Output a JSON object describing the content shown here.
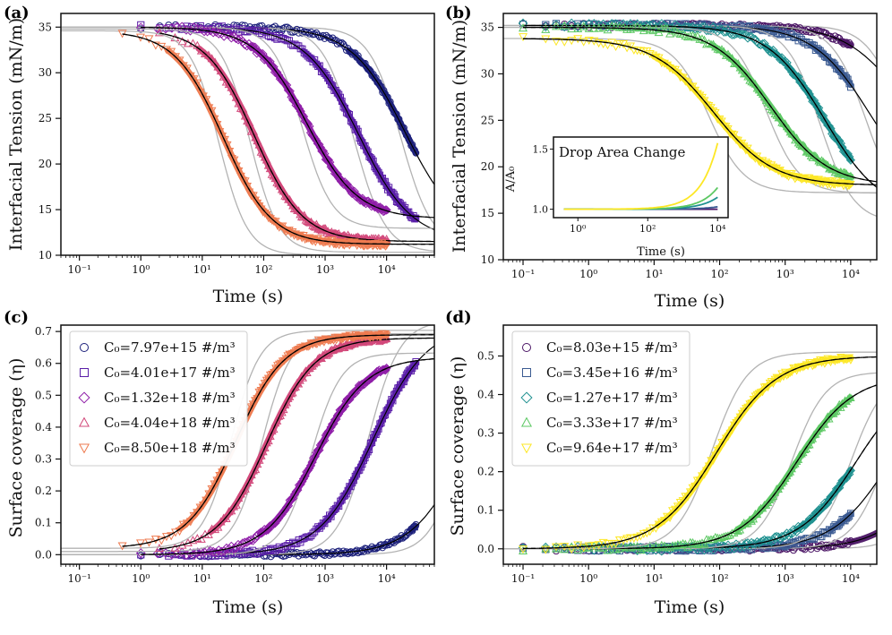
{
  "figure": {
    "panels": [
      {
        "tag": "(a)",
        "ylabel": "Interfacial Tension (mN/m)",
        "xlabel": "Time (s)"
      },
      {
        "tag": "(b)",
        "ylabel": "Interfacial Tension (mN/m)",
        "xlabel": "Time (s)"
      },
      {
        "tag": "(c)",
        "ylabel": "Surface coverage (η)",
        "xlabel": "Time (s)"
      },
      {
        "tag": "(d)",
        "ylabel": "Surface coverage (η)",
        "xlabel": "Time (s)"
      }
    ],
    "inset": {
      "title": "Drop Area Change",
      "ylabel": "A/A₀",
      "xlabel": "Time (s)"
    }
  },
  "chart_data": [
    {
      "panel": "(a)",
      "type": "scatter",
      "title": "",
      "xlabel": "Time (s)",
      "ylabel": "Interfacial Tension (mN/m)",
      "xscale": "log",
      "xlim": [
        0.05,
        60000
      ],
      "ylim": [
        10,
        36.5
      ],
      "xticks": [
        "10⁻¹",
        "10⁰",
        "10¹",
        "10²",
        "10³",
        "10⁴"
      ],
      "xtick_values": [
        0.1,
        1,
        10,
        100,
        1000,
        10000
      ],
      "yticks": [
        10,
        15,
        20,
        25,
        30,
        35
      ],
      "series": [
        {
          "name": "C0=7.97e+15 #/m3",
          "color": "#1b1f7a",
          "marker": "circle",
          "start": 35,
          "end": 12,
          "t50": 20000,
          "slope": 1.0,
          "tmin": 1,
          "tmax": 30000,
          "fitEnd": 12,
          "fitT50": 12000
        },
        {
          "name": "C0=4.01e+17 #/m3",
          "color": "#5a1ea8",
          "marker": "square",
          "start": 35,
          "end": 11.5,
          "t50": 3500,
          "slope": 1.0,
          "tmin": 1,
          "tmax": 30000,
          "fitEnd": 11.5,
          "fitT50": 3500
        },
        {
          "name": "C0=1.32e+18 #/m3",
          "color": "#8f1ea8",
          "marker": "diamond",
          "start": 35,
          "end": 14,
          "t50": 500,
          "slope": 1.05,
          "tmin": 1,
          "tmax": 10000,
          "fitEnd": 12,
          "fitT50": 600
        },
        {
          "name": "C0=4.04e+18 #/m3",
          "color": "#d2487a",
          "marker": "triangle-up",
          "start": 34.8,
          "end": 11.5,
          "t50": 70,
          "slope": 1.1,
          "tmin": 2,
          "tmax": 10000,
          "fitEnd": 11.5,
          "fitT50": 70
        },
        {
          "name": "C0=8.50e+18 #/m3",
          "color": "#ee7b50",
          "marker": "triangle-down",
          "start": 34.6,
          "end": 11.2,
          "t50": 22,
          "slope": 1.1,
          "tmin": 0.5,
          "tmax": 10000,
          "fitEnd": 11.2,
          "fitT50": 22
        }
      ]
    },
    {
      "panel": "(b)",
      "type": "scatter",
      "title": "",
      "xlabel": "Time (s)",
      "ylabel": "Interfacial Tension (mN/m)",
      "xscale": "log",
      "xlim": [
        0.05,
        25000
      ],
      "ylim": [
        10,
        36.5
      ],
      "xticks": [
        "10⁻¹",
        "10⁰",
        "10¹",
        "10²",
        "10³",
        "10⁴"
      ],
      "xtick_values": [
        0.1,
        1,
        10,
        100,
        1000,
        10000
      ],
      "yticks": [
        10,
        15,
        20,
        25,
        30,
        35
      ],
      "series": [
        {
          "name": "C0=8.03e+15 #/m3",
          "color": "#4b1565",
          "marker": "circle",
          "start": 35.2,
          "end": 20,
          "t50": 60000,
          "slope": 1.0,
          "tmin": 0.1,
          "tmax": 10000,
          "fitEnd": 20,
          "fitT50": 60000
        },
        {
          "name": "C0=3.45e+16 #/m3",
          "color": "#3b5b92",
          "marker": "square",
          "start": 35.2,
          "end": 16,
          "t50": 20000,
          "slope": 1.0,
          "tmin": 0.1,
          "tmax": 10000,
          "fitEnd": 16,
          "fitT50": 20000
        },
        {
          "name": "C0=1.27e+17 #/m3",
          "color": "#1f9190",
          "marker": "diamond",
          "start": 35.2,
          "end": 15,
          "t50": 4000,
          "slope": 1.0,
          "tmin": 0.1,
          "tmax": 10000,
          "fitEnd": 15,
          "fitT50": 4000
        },
        {
          "name": "C0=3.33e+17 #/m3",
          "color": "#5cc863",
          "marker": "triangle-up",
          "start": 35,
          "end": 18,
          "t50": 600,
          "slope": 1.0,
          "tmin": 0.1,
          "tmax": 10000,
          "fitEnd": 18,
          "fitT50": 600
        },
        {
          "name": "C0=9.64e+17 #/m3",
          "color": "#fde725",
          "marker": "triangle-down",
          "start": 33.8,
          "end": 18,
          "t50": 80,
          "slope": 0.95,
          "tmin": 0.1,
          "tmax": 10000,
          "fitEnd": 18,
          "fitT50": 80
        }
      ]
    },
    {
      "panel": "(c)",
      "type": "scatter",
      "title": "",
      "xlabel": "Time (s)",
      "ylabel": "Surface coverage (η)",
      "xscale": "log",
      "xlim": [
        0.05,
        60000
      ],
      "ylim": [
        -0.03,
        0.72
      ],
      "xticks": [
        "10⁻¹",
        "10⁰",
        "10¹",
        "10²",
        "10³",
        "10⁴"
      ],
      "xtick_values": [
        0.1,
        1,
        10,
        100,
        1000,
        10000
      ],
      "yticks": [
        0.0,
        0.1,
        0.2,
        0.3,
        0.4,
        0.5,
        0.6,
        0.7
      ],
      "legend": "upper-left",
      "series": [
        {
          "name": "C0=7.97e+15 #/m3",
          "label": "C₀=7.97e+15 #/m³",
          "color": "#1b1f7a",
          "marker": "circle",
          "start": 0.0,
          "end": 0.68,
          "t50": 200000,
          "slope": 1.0,
          "tmin": 1,
          "tmax": 30000
        },
        {
          "name": "C0=4.01e+17 #/m3",
          "label": "C₀=4.01e+17 #/m³",
          "color": "#5a1ea8",
          "marker": "square",
          "start": 0.0,
          "end": 0.72,
          "t50": 6000,
          "slope": 1.0,
          "tmin": 1,
          "tmax": 30000
        },
        {
          "name": "C0=1.32e+18 #/m3",
          "label": "C₀=1.32e+18 #/m³",
          "color": "#8f1ea8",
          "marker": "diamond",
          "start": 0.0,
          "end": 0.62,
          "t50": 700,
          "slope": 1.05,
          "tmin": 1,
          "tmax": 10000
        },
        {
          "name": "C0=4.04e+18 #/m3",
          "label": "C₀=4.04e+18 #/m³",
          "color": "#d2487a",
          "marker": "triangle-up",
          "start": 0.01,
          "end": 0.68,
          "t50": 110,
          "slope": 1.1,
          "tmin": 2,
          "tmax": 10000
        },
        {
          "name": "C0=8.50e+18 #/m3",
          "label": "C₀=8.50e+18 #/m³",
          "color": "#ee7b50",
          "marker": "triangle-down",
          "start": 0.02,
          "end": 0.69,
          "t50": 35,
          "slope": 1.1,
          "tmin": 0.5,
          "tmax": 10000
        }
      ]
    },
    {
      "panel": "(d)",
      "type": "scatter",
      "title": "",
      "xlabel": "Time (s)",
      "ylabel": "Surface coverage (η)",
      "xscale": "log",
      "xlim": [
        0.05,
        25000
      ],
      "ylim": [
        -0.04,
        0.58
      ],
      "xticks": [
        "10⁻¹",
        "10⁰",
        "10¹",
        "10²",
        "10³",
        "10⁴"
      ],
      "xtick_values": [
        0.1,
        1,
        10,
        100,
        1000,
        10000
      ],
      "yticks": [
        0.0,
        0.1,
        0.2,
        0.3,
        0.4,
        0.5
      ],
      "legend": "upper-left",
      "series": [
        {
          "name": "C0=8.03e+15 #/m3",
          "label": "C₀=8.03e+15 #/m³",
          "color": "#4b1565",
          "marker": "circle",
          "start": 0.0,
          "end": 0.45,
          "t50": 250000,
          "slope": 1.0,
          "tmin": 0.1,
          "tmax": 10000
        },
        {
          "name": "C0=3.45e+16 #/m3",
          "label": "C₀=3.45e+16 #/m³",
          "color": "#3b5b92",
          "marker": "square",
          "start": 0.0,
          "end": 0.45,
          "t50": 40000,
          "slope": 1.0,
          "tmin": 0.1,
          "tmax": 10000
        },
        {
          "name": "C0=1.27e+17 #/m3",
          "label": "C₀=1.27e+17 #/m³",
          "color": "#1f9190",
          "marker": "diamond",
          "start": 0.0,
          "end": 0.45,
          "t50": 12000,
          "slope": 1.0,
          "tmin": 0.1,
          "tmax": 10000
        },
        {
          "name": "C0=3.33e+17 #/m3",
          "label": "C₀=3.33e+17 #/m³",
          "color": "#5cc863",
          "marker": "triangle-up",
          "start": 0.0,
          "end": 0.45,
          "t50": 1500,
          "slope": 1.0,
          "tmin": 0.1,
          "tmax": 10000
        },
        {
          "name": "C0=9.64e+17 #/m3",
          "label": "C₀=9.64e+17 #/m³",
          "color": "#fde725",
          "marker": "triangle-down",
          "start": 0.0,
          "end": 0.5,
          "t50": 90,
          "slope": 0.95,
          "tmin": 0.1,
          "tmax": 10000
        }
      ]
    },
    {
      "panel": "inset-b",
      "type": "line",
      "title": "Drop Area Change",
      "xlabel": "Time (s)",
      "ylabel": "A/A₀",
      "xscale": "log",
      "xlim": [
        0.2,
        20000
      ],
      "ylim": [
        0.93,
        1.6
      ],
      "xticks": [
        "10⁰",
        "10²",
        "10⁴"
      ],
      "xtick_values": [
        1,
        100,
        10000
      ],
      "yticks": [
        1.0,
        1.5
      ],
      "series": [
        {
          "name": "C0=8.03e+15 #/m3",
          "color": "#4b1565",
          "end": 1.0
        },
        {
          "name": "C0=3.45e+16 #/m3",
          "color": "#3b5b92",
          "end": 1.02
        },
        {
          "name": "C0=1.27e+17 #/m3",
          "color": "#1f9190",
          "end": 1.1
        },
        {
          "name": "C0=3.33e+17 #/m3",
          "color": "#5cc863",
          "end": 1.18
        },
        {
          "name": "C0=9.64e+17 #/m3",
          "color": "#fde725",
          "end": 1.55
        }
      ]
    }
  ]
}
